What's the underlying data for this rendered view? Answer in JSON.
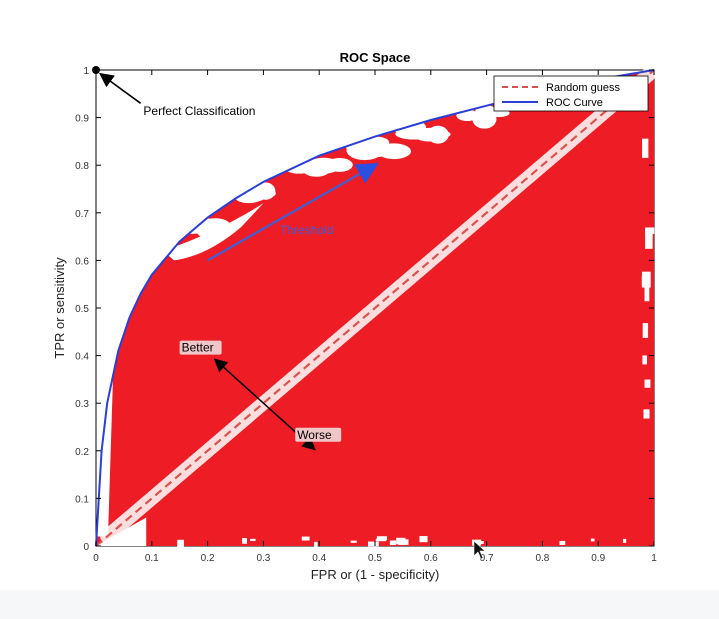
{
  "chart_data": {
    "type": "line",
    "title": "ROC Space",
    "xlabel": "FPR or (1 - specificity)",
    "ylabel": "TPR or sensitivity",
    "xlim": [
      0,
      1
    ],
    "ylim": [
      0,
      1
    ],
    "xticks": [
      "0",
      "0.1",
      "0.2",
      "0.3",
      "0.4",
      "0.5",
      "0.6",
      "0.7",
      "0.8",
      "0.9",
      "1"
    ],
    "yticks": [
      "0",
      "0.1",
      "0.2",
      "0.3",
      "0.4",
      "0.5",
      "0.6",
      "0.7",
      "0.8",
      "0.9",
      "1"
    ],
    "grid": false,
    "legend_position": "top-right",
    "series": [
      {
        "name": "Random guess",
        "style": "dashed",
        "color": "#d9534f",
        "x": [
          0,
          1
        ],
        "y": [
          0,
          1
        ]
      },
      {
        "name": "ROC Curve",
        "style": "solid",
        "color": "#2b3fd6",
        "x": [
          0,
          0.01,
          0.02,
          0.04,
          0.06,
          0.08,
          0.1,
          0.15,
          0.2,
          0.25,
          0.3,
          0.4,
          0.5,
          0.6,
          0.7,
          0.8,
          0.9,
          1
        ],
        "y": [
          0,
          0.2,
          0.3,
          0.41,
          0.48,
          0.53,
          0.57,
          0.64,
          0.69,
          0.73,
          0.765,
          0.82,
          0.86,
          0.895,
          0.925,
          0.955,
          0.98,
          1
        ]
      }
    ],
    "annotations": {
      "perfect": {
        "label": "Perfect Classification",
        "point": [
          0,
          1
        ]
      },
      "threshold": {
        "label": "Threshold",
        "from": [
          0.2,
          0.6
        ],
        "to": [
          0.5,
          0.8
        ]
      },
      "better": {
        "label": "Better",
        "point": [
          0.2,
          0.4
        ]
      },
      "worse": {
        "label": "Worse",
        "point": [
          0.4,
          0.2
        ]
      },
      "diagonal_arrow": {
        "from": [
          0.2,
          0.4
        ],
        "to": [
          0.4,
          0.2
        ]
      }
    },
    "colors": {
      "fill": "#ee1c24",
      "roc": "#2b3fd6",
      "random": "#d9534f",
      "threshold": "#3d5fd9",
      "axis": "#000000"
    }
  }
}
